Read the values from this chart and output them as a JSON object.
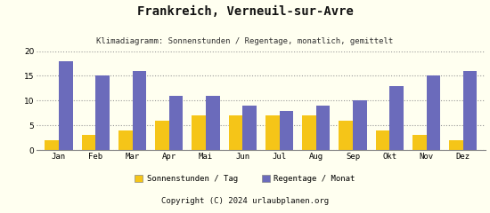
{
  "title": "Frankreich, Verneuil-sur-Avre",
  "subtitle": "Klimadiagramm: Sonnenstunden / Regentage, monatlich, gemittelt",
  "months": [
    "Jan",
    "Feb",
    "Mar",
    "Apr",
    "Mai",
    "Jun",
    "Jul",
    "Aug",
    "Sep",
    "Okt",
    "Nov",
    "Dez"
  ],
  "sonnenstunden": [
    2,
    3,
    4,
    6,
    7,
    7,
    7,
    7,
    6,
    4,
    3,
    2
  ],
  "regentage": [
    18,
    15,
    16,
    11,
    11,
    9,
    8,
    9,
    10,
    13,
    15,
    16
  ],
  "color_sonnenstunden": "#F5C518",
  "color_regentage": "#6B6BBB",
  "background_color": "#FFFFF0",
  "footer_bg_color": "#F0A800",
  "footer_text": "Copyright (C) 2024 urlaubplanen.org",
  "ylim": [
    0,
    20
  ],
  "yticks": [
    0,
    5,
    10,
    15,
    20
  ],
  "legend_sonnenstunden": "Sonnenstunden / Tag",
  "legend_regentage": "Regentage / Monat",
  "bar_width": 0.38,
  "title_fontsize": 10,
  "subtitle_fontsize": 6.5,
  "axis_fontsize": 6.5,
  "legend_fontsize": 6.5,
  "footer_fontsize": 6.5
}
